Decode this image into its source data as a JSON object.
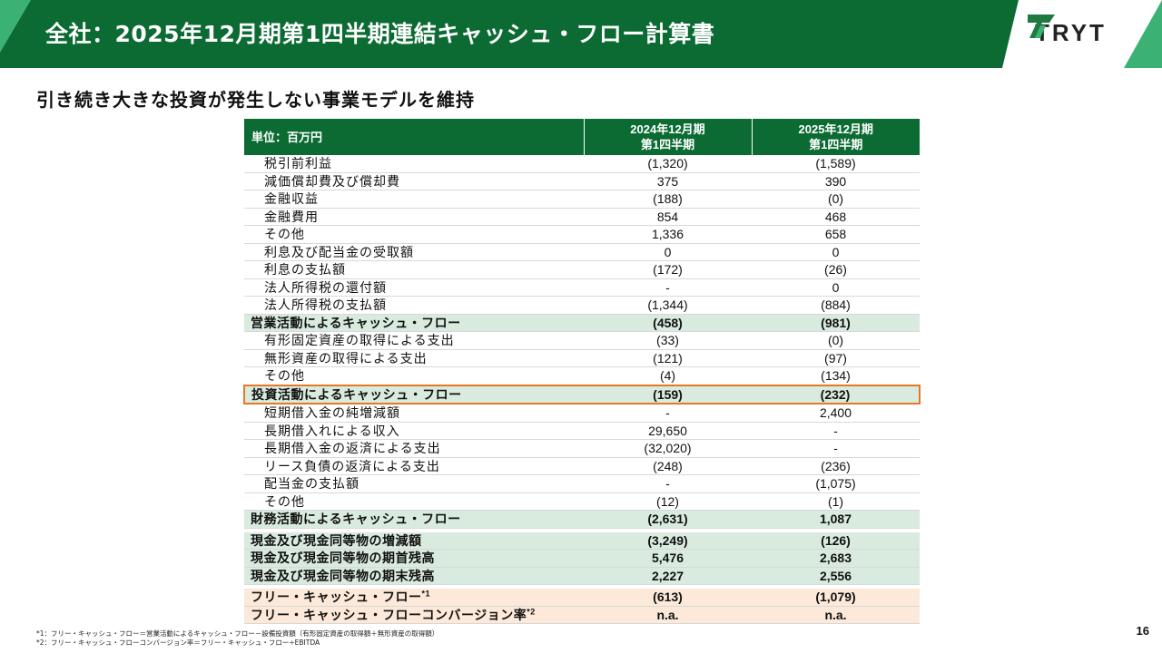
{
  "header": {
    "title": "全社：2025年12月期第1四半期連結キャッシュ・フロー計算書",
    "brand": "TRYT",
    "colors": {
      "primary": "#0b6b33",
      "accent": "#3bb273",
      "highlight": "#e87722"
    }
  },
  "subtitle": "引き続き大きな投資が発生しない事業モデルを維持",
  "table": {
    "unit_label": "単位：百万円",
    "col1": {
      "line1": "2024年12月期",
      "line2": "第1四半期"
    },
    "col2": {
      "line1": "2025年12月期",
      "line2": "第1四半期"
    },
    "rows": [
      {
        "label": "税引前利益",
        "v1": "(1,320)",
        "v2": "(1,589)"
      },
      {
        "label": "減価償却費及び償却費",
        "v1": "375",
        "v2": "390"
      },
      {
        "label": "金融収益",
        "v1": "(188)",
        "v2": "(0)"
      },
      {
        "label": "金融費用",
        "v1": "854",
        "v2": "468"
      },
      {
        "label": "その他",
        "v1": "1,336",
        "v2": "658"
      },
      {
        "label": "利息及び配当金の受取額",
        "v1": "0",
        "v2": "0"
      },
      {
        "label": "利息の支払額",
        "v1": "(172)",
        "v2": "(26)"
      },
      {
        "label": "法人所得税の還付額",
        "v1": "-",
        "v2": "0"
      },
      {
        "label": "法人所得税の支払額",
        "v1": "(1,344)",
        "v2": "(884)"
      },
      {
        "label": "営業活動によるキャッシュ・フロー",
        "v1": "(458)",
        "v2": "(981)"
      },
      {
        "label": "有形固定資産の取得による支出",
        "v1": "(33)",
        "v2": "(0)"
      },
      {
        "label": "無形資産の取得による支出",
        "v1": "(121)",
        "v2": "(97)"
      },
      {
        "label": "その他",
        "v1": "(4)",
        "v2": "(134)"
      },
      {
        "label": "投資活動によるキャッシュ・フロー",
        "v1": "(159)",
        "v2": "(232)"
      },
      {
        "label": "短期借入金の純増減額",
        "v1": "-",
        "v2": "2,400"
      },
      {
        "label": "長期借入れによる収入",
        "v1": "29,650",
        "v2": "-"
      },
      {
        "label": "長期借入金の返済による支出",
        "v1": "(32,020)",
        "v2": "-"
      },
      {
        "label": "リース負債の返済による支出",
        "v1": "(248)",
        "v2": "(236)"
      },
      {
        "label": "配当金の支払額",
        "v1": "-",
        "v2": "(1,075)"
      },
      {
        "label": "その他",
        "v1": "(12)",
        "v2": "(1)"
      },
      {
        "label": "財務活動によるキャッシュ・フロー",
        "v1": "(2,631)",
        "v2": "1,087"
      },
      {
        "label": "現金及び現金同等物の増減額",
        "v1": "(3,249)",
        "v2": "(126)"
      },
      {
        "label": "現金及び現金同等物の期首残高",
        "v1": "5,476",
        "v2": "2,683"
      },
      {
        "label": "現金及び現金同等物の期末残高",
        "v1": "2,227",
        "v2": "2,556"
      },
      {
        "label": "フリー・キャッシュ・フロー",
        "sup": "*1",
        "v1": "(613)",
        "v2": "(1,079)"
      },
      {
        "label": "フリー・キャッシュ・フローコンバージョン率",
        "sup": "*2",
        "v1": "n.a.",
        "v2": "n.a."
      }
    ]
  },
  "footnotes": [
    "*1：フリー・キャッシュ・フロー＝営業活動によるキャッシュ・フロー－設備投資額（有形固定資産の取得額＋無形資産の取得額）",
    "*2：フリー・キャッシュ・フローコンバージョン率＝フリー・キャッシュ・フロー÷EBITDA"
  ],
  "page_number": "16"
}
